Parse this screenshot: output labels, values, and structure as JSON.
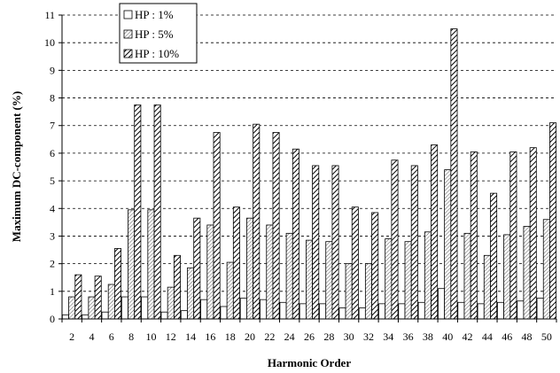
{
  "chart_data": {
    "type": "bar",
    "xlabel": "Harmonic Order",
    "ylabel": "Maximum DC-component (%)",
    "ylim": [
      0,
      11
    ],
    "yticks": [
      0,
      1,
      2,
      3,
      4,
      5,
      6,
      7,
      8,
      9,
      10,
      11
    ],
    "grid": "horizontal-dashed",
    "legend_position": "top-left",
    "categories": [
      "2",
      "4",
      "6",
      "8",
      "10",
      "12",
      "14",
      "16",
      "18",
      "20",
      "22",
      "24",
      "26",
      "28",
      "30",
      "32",
      "34",
      "36",
      "38",
      "40",
      "42",
      "44",
      "46",
      "48",
      "50"
    ],
    "series": [
      {
        "name": "HP : 1%",
        "pattern": "plain",
        "values": [
          0.15,
          0.15,
          0.25,
          0.8,
          0.8,
          0.25,
          0.3,
          0.7,
          0.45,
          0.75,
          0.7,
          0.6,
          0.55,
          0.55,
          0.4,
          0.4,
          0.55,
          0.55,
          0.6,
          1.1,
          0.6,
          0.55,
          0.6,
          0.65,
          0.75
        ]
      },
      {
        "name": "HP : 5%",
        "pattern": "light-hatch",
        "values": [
          0.8,
          0.8,
          1.25,
          3.95,
          3.95,
          1.15,
          1.85,
          3.4,
          2.05,
          3.65,
          3.4,
          3.1,
          2.85,
          2.8,
          2.0,
          2.0,
          2.9,
          2.8,
          3.15,
          5.4,
          3.1,
          2.3,
          3.05,
          3.35,
          3.6
        ]
      },
      {
        "name": "HP : 10%",
        "pattern": "heavy-hatch",
        "values": [
          1.6,
          1.55,
          2.55,
          7.75,
          7.75,
          2.3,
          3.65,
          6.75,
          4.05,
          7.05,
          6.75,
          6.15,
          5.55,
          5.55,
          4.05,
          3.85,
          5.75,
          5.55,
          6.3,
          10.5,
          6.05,
          4.55,
          6.05,
          6.2,
          7.1
        ]
      }
    ]
  }
}
